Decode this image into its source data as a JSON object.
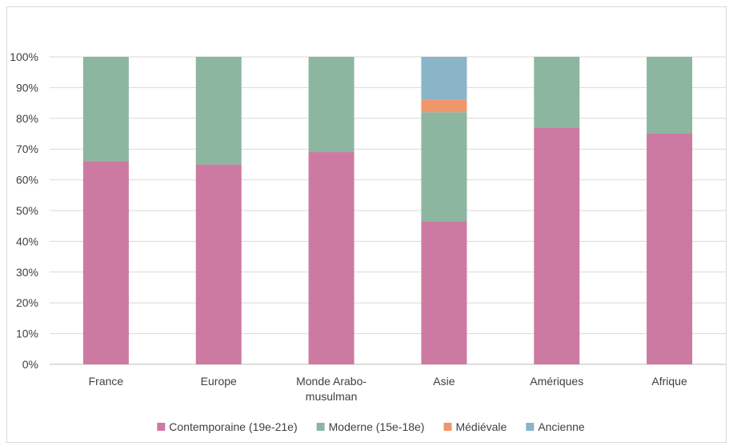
{
  "chart_data": {
    "type": "bar",
    "stacked": true,
    "categories": [
      [
        "France"
      ],
      [
        "Europe"
      ],
      [
        "Monde Arabo-",
        "musulman"
      ],
      [
        "Asie"
      ],
      [
        "Amériques"
      ],
      [
        "Afrique"
      ]
    ],
    "series": [
      {
        "name": "Contemporaine (19e-21e)",
        "color": "#cc7aa1",
        "values": [
          66,
          65,
          69,
          46.5,
          77,
          75
        ]
      },
      {
        "name": "Moderne (15e-18e)",
        "color": "#8db6a0",
        "values": [
          34,
          35,
          31,
          35.5,
          23,
          25
        ]
      },
      {
        "name": "Médiévale",
        "color": "#f0966b",
        "values": [
          0,
          0,
          0,
          4,
          0,
          0
        ]
      },
      {
        "name": "Ancienne",
        "color": "#8ab5c8",
        "values": [
          0,
          0,
          0,
          14,
          0,
          0
        ]
      }
    ],
    "ylim": [
      0,
      100
    ],
    "yticks": [
      "0%",
      "10%",
      "20%",
      "30%",
      "40%",
      "50%",
      "60%",
      "70%",
      "80%",
      "90%",
      "100%"
    ],
    "grid": true,
    "legend_position": "bottom"
  }
}
